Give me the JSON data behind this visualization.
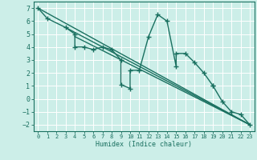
{
  "xlabel": "Humidex (Indice chaleur)",
  "bg_color": "#cceee8",
  "line_color": "#1a7060",
  "grid_color": "#ffffff",
  "xlim": [
    -0.5,
    23.5
  ],
  "ylim": [
    -2.5,
    7.5
  ],
  "xticks": [
    0,
    1,
    2,
    3,
    4,
    5,
    6,
    7,
    8,
    9,
    10,
    11,
    12,
    13,
    14,
    15,
    16,
    17,
    18,
    19,
    20,
    21,
    22,
    23
  ],
  "yticks": [
    -2,
    -1,
    0,
    1,
    2,
    3,
    4,
    5,
    6,
    7
  ],
  "series": [
    [
      0,
      7.0
    ],
    [
      1,
      6.2
    ],
    [
      3,
      5.5
    ],
    [
      4,
      5.0
    ],
    [
      4,
      4.0
    ],
    [
      5,
      4.0
    ],
    [
      6,
      3.8
    ],
    [
      7,
      4.0
    ],
    [
      8,
      3.8
    ],
    [
      9,
      3.0
    ],
    [
      9,
      1.1
    ],
    [
      10,
      0.8
    ],
    [
      10,
      2.2
    ],
    [
      11,
      2.2
    ],
    [
      12,
      4.8
    ],
    [
      13,
      6.5
    ],
    [
      14,
      6.0
    ],
    [
      15,
      2.5
    ],
    [
      15,
      3.5
    ],
    [
      16,
      3.5
    ],
    [
      17,
      2.8
    ],
    [
      18,
      2.0
    ],
    [
      19,
      1.0
    ],
    [
      19,
      1.0
    ],
    [
      20,
      -0.2
    ],
    [
      21,
      -1.0
    ],
    [
      22,
      -1.2
    ],
    [
      23,
      -2.0
    ]
  ],
  "line1": [
    [
      0,
      7.0
    ],
    [
      23,
      -2.0
    ]
  ],
  "line2": [
    [
      3,
      5.5
    ],
    [
      23,
      -2.0
    ]
  ],
  "line3": [
    [
      4,
      4.8
    ],
    [
      23,
      -2.0
    ]
  ]
}
